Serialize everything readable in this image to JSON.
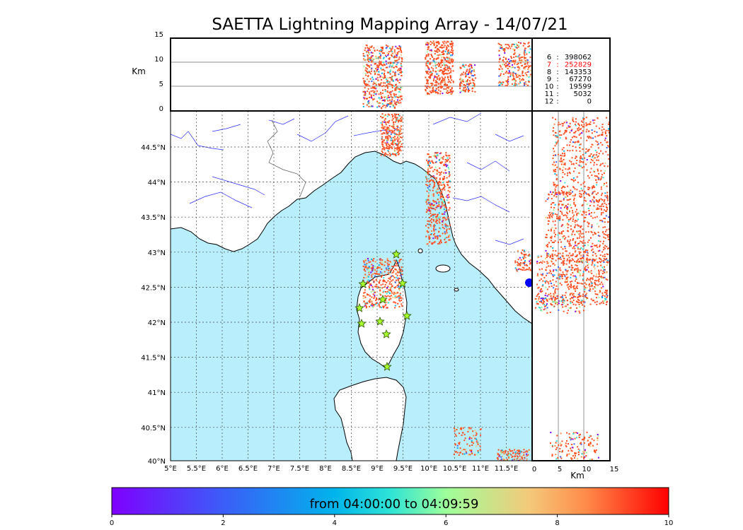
{
  "title": "SAETTA Lightning Mapping Array - 14/07/21",
  "altitude_axis": {
    "label": "Km",
    "ticks": [
      "15",
      "10",
      "5",
      "0"
    ]
  },
  "side_axis": {
    "label": "Km",
    "ticks": [
      "0",
      "5",
      "10",
      "15"
    ]
  },
  "map": {
    "lon_ticks": [
      "5°E",
      "5.5°E",
      "6°E",
      "6.5°E",
      "7°E",
      "7.5°E",
      "8°E",
      "8.5°E",
      "9°E",
      "9.5°E",
      "10°E",
      "10.5°E",
      "11°E",
      "11.5°E"
    ],
    "lat_ticks": [
      "44.5°N",
      "44°N",
      "43.5°N",
      "43°N",
      "42.5°N",
      "42°N",
      "41.5°N",
      "41°N",
      "40.5°N",
      "40°N"
    ],
    "sea_color": "#b9eefc",
    "land_color": "#ffffff",
    "station_marker": "star",
    "station_color": "#a9ff2d"
  },
  "stats": [
    {
      "id": "6",
      "count": "398062",
      "highlight": false
    },
    {
      "id": "7",
      "count": "252829",
      "highlight": true
    },
    {
      "id": "8",
      "count": "143353",
      "highlight": false
    },
    {
      "id": "9",
      "count": "67270",
      "highlight": false
    },
    {
      "id": "10",
      "count": "19599",
      "highlight": false
    },
    {
      "id": "11",
      "count": "5032",
      "highlight": false
    },
    {
      "id": "12",
      "count": "0",
      "highlight": false
    }
  ],
  "colorbar": {
    "label": "from 04:00:00 to 04:09:59",
    "ticks": [
      "0",
      "2",
      "4",
      "6",
      "8",
      "10"
    ],
    "range": [
      0,
      10
    ],
    "colormap": "rainbow"
  }
}
